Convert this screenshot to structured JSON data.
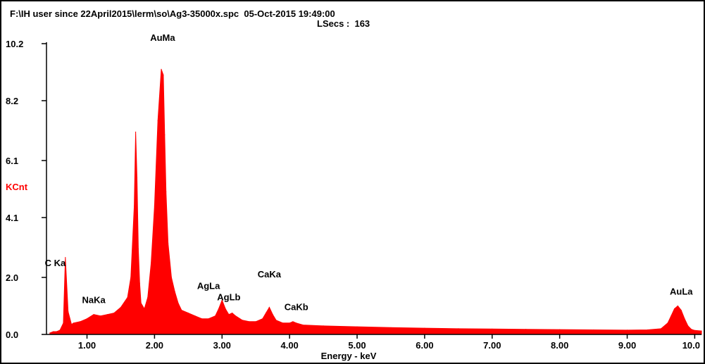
{
  "header": {
    "file_line": "F:\\IH user since 22April2015\\lerm\\so\\Ag3-35000x.spc  05-Oct-2015 19:49:00",
    "lsecs_line": "LSecs :  163"
  },
  "chart_data": {
    "type": "area",
    "title": "",
    "xlabel": "Energy - keV",
    "ylabel": "KCnt",
    "xlim": [
      0.4,
      10.1
    ],
    "ylim": [
      0.0,
      10.2
    ],
    "x_ticks": [
      "1.00",
      "2.00",
      "3.00",
      "4.00",
      "5.00",
      "6.00",
      "7.00",
      "8.00",
      "9.00",
      "10.0"
    ],
    "x_tick_values": [
      1,
      2,
      3,
      4,
      5,
      6,
      7,
      8,
      9,
      10
    ],
    "y_ticks": [
      "0.0",
      "2.0",
      "4.1",
      "6.1",
      "8.2",
      "10.2"
    ],
    "y_tick_values": [
      0.0,
      2.0,
      4.1,
      6.1,
      8.2,
      10.2
    ],
    "grid": false,
    "series": [
      {
        "color": "#ff0000",
        "x": [
          0.45,
          0.5,
          0.55,
          0.6,
          0.65,
          0.68,
          0.72,
          0.77,
          0.8,
          0.9,
          1.0,
          1.1,
          1.2,
          1.3,
          1.4,
          1.5,
          1.6,
          1.65,
          1.7,
          1.72,
          1.74,
          1.76,
          1.78,
          1.8,
          1.85,
          1.9,
          1.95,
          2.0,
          2.05,
          2.1,
          2.13,
          2.15,
          2.17,
          2.2,
          2.25,
          2.3,
          2.35,
          2.4,
          2.5,
          2.6,
          2.7,
          2.8,
          2.9,
          2.95,
          3.0,
          3.05,
          3.1,
          3.15,
          3.2,
          3.3,
          3.4,
          3.5,
          3.6,
          3.65,
          3.7,
          3.75,
          3.8,
          3.9,
          4.0,
          4.05,
          4.1,
          4.2,
          4.5,
          5.0,
          5.5,
          6.0,
          6.5,
          7.0,
          7.5,
          8.0,
          8.5,
          9.0,
          9.3,
          9.5,
          9.6,
          9.65,
          9.7,
          9.75,
          9.8,
          9.85,
          9.9,
          9.95,
          10.0,
          10.1
        ],
        "values": [
          0.05,
          0.1,
          0.1,
          0.15,
          0.4,
          2.7,
          0.8,
          0.35,
          0.4,
          0.45,
          0.55,
          0.7,
          0.65,
          0.7,
          0.75,
          0.95,
          1.3,
          2.0,
          4.5,
          7.1,
          5.5,
          3.0,
          1.8,
          1.1,
          0.9,
          1.3,
          2.5,
          4.5,
          7.5,
          9.3,
          9.1,
          7.0,
          5.0,
          3.2,
          2.0,
          1.5,
          1.1,
          0.85,
          0.75,
          0.65,
          0.55,
          0.55,
          0.65,
          0.9,
          1.2,
          0.9,
          0.7,
          0.75,
          0.65,
          0.5,
          0.45,
          0.45,
          0.55,
          0.75,
          0.95,
          0.7,
          0.5,
          0.4,
          0.4,
          0.45,
          0.4,
          0.33,
          0.3,
          0.27,
          0.24,
          0.22,
          0.2,
          0.19,
          0.18,
          0.17,
          0.16,
          0.15,
          0.16,
          0.2,
          0.4,
          0.65,
          0.9,
          1.0,
          0.85,
          0.55,
          0.3,
          0.18,
          0.14,
          0.12
        ]
      }
    ],
    "annotations": [
      {
        "text": "AuMa",
        "x": 2.12,
        "y": 10.2
      },
      {
        "text": "C  Ka",
        "x": 0.53,
        "y": 2.3
      },
      {
        "text": "NaKa",
        "x": 1.1,
        "y": 1.0
      },
      {
        "text": "AgLa",
        "x": 2.8,
        "y": 1.5
      },
      {
        "text": "AgLb",
        "x": 3.1,
        "y": 1.1
      },
      {
        "text": "CaKa",
        "x": 3.7,
        "y": 1.9
      },
      {
        "text": "CaKb",
        "x": 4.1,
        "y": 0.75
      },
      {
        "text": "AuLa",
        "x": 9.8,
        "y": 1.3
      }
    ]
  }
}
